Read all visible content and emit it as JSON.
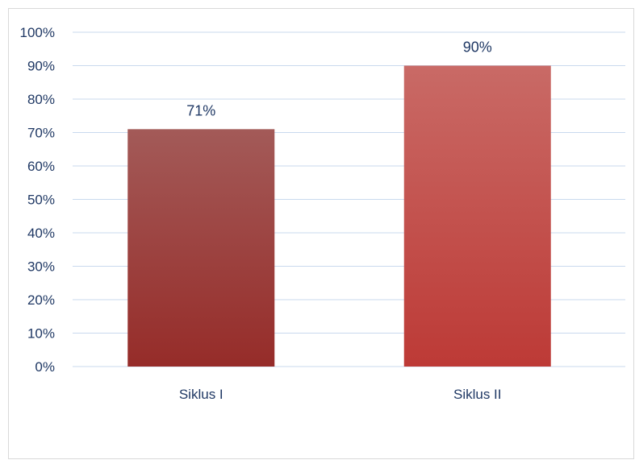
{
  "chart_data": {
    "type": "bar",
    "categories": [
      "Siklus I",
      "Siklus II"
    ],
    "values": [
      71,
      90
    ],
    "data_labels": [
      "71%",
      "90%"
    ],
    "y_tick_labels": [
      "0%",
      "10%",
      "20%",
      "30%",
      "40%",
      "50%",
      "60%",
      "70%",
      "80%",
      "90%",
      "100%"
    ],
    "ylim": [
      0,
      100
    ],
    "y_unit": "%",
    "title": "",
    "xlabel": "",
    "ylabel": "",
    "grid": true,
    "legend": "none",
    "colors": {
      "bar_1_top": "#a35a58",
      "bar_1_bottom": "#962c29",
      "bar_2_top": "#c96a66",
      "bar_2_bottom": "#bd3a36",
      "gridline": "#c9d9ee",
      "text": "#1f3864",
      "frame": "#d9d9d9"
    }
  }
}
